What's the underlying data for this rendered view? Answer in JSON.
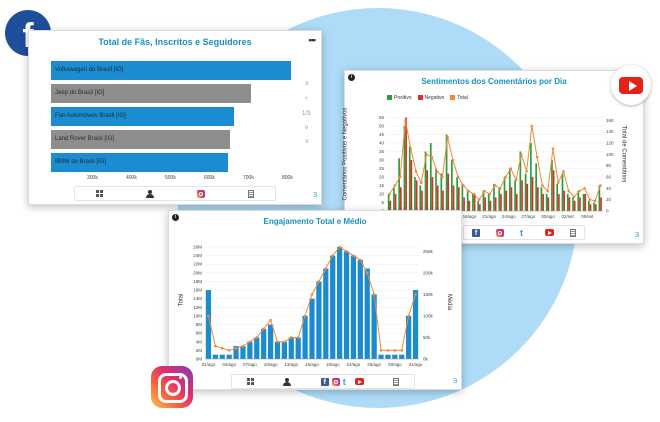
{
  "colors": {
    "accent": "#1a8fc4",
    "bar_blue": "#1b8ccf",
    "bar_gray": "#8d8d8d",
    "positive": "#27a03a",
    "negative": "#d9302c",
    "total": "#f2893a",
    "facebook": "#1f4e9a",
    "youtube": "#e62117",
    "background_circle": "#aedcf8"
  },
  "icons": {
    "facebook_logo": "facebook-icon",
    "youtube_logo": "youtube-icon",
    "instagram_logo": "instagram-icon",
    "menu": "more-dots-icon",
    "info": "info-icon",
    "table_view": "grid-icon",
    "user": "user-icon",
    "report": "document-icon"
  },
  "card1": {
    "title": "Total de Fãs, Inscritos e Seguidores",
    "menu": "•••",
    "side_controls": [
      "≡",
      "^",
      "1/3",
      "v",
      "≡"
    ],
    "corner_mark": "Ǝ",
    "chart_data": {
      "type": "bar",
      "orientation": "horizontal",
      "categories": [
        "Volkswagen do Brasil [IG]",
        "Jeep do Brasil [IG]",
        "Fiat Automóveis Brasil [IG]",
        "Land Rover Brasil [IG]",
        "BMW do Brasil [IG]"
      ],
      "values": [
        840000,
        700000,
        640000,
        625000,
        620000
      ],
      "bar_colors": [
        "#1b8ccf",
        "#8d8d8d",
        "#1b8ccf",
        "#8d8d8d",
        "#1b8ccf"
      ],
      "xlim": [
        0,
        860000
      ],
      "xticks": [
        "300k",
        "400k",
        "500k",
        "600k",
        "700k",
        "800k"
      ],
      "grid": true
    }
  },
  "card2": {
    "title": "Sentimentos dos Comentários por Dia",
    "menu": "•••",
    "corner_mark": "Ǝ",
    "chart_data": {
      "type": "bar",
      "title": "Sentimentos dos Comentários por Dia",
      "ylabel": "Comentários Positivos e Negativos",
      "y2label": "Total de Comentários",
      "legend": [
        "Positivo",
        "Negativo",
        "Total"
      ],
      "legend_position": "top",
      "ylim": [
        0,
        60
      ],
      "yticks": [
        0,
        5,
        10,
        15,
        20,
        25,
        30,
        35,
        40,
        45,
        50,
        55
      ],
      "y2lim": [
        0,
        180
      ],
      "y2ticks": [
        0,
        20,
        40,
        60,
        80,
        100,
        120,
        140,
        160
      ],
      "xticks": [
        "16/ago",
        "21/ago",
        "24/ago",
        "27/ago",
        "30/ago",
        "02/set",
        "05/set"
      ],
      "series": [
        {
          "name": "Positivo",
          "values": [
            10,
            14,
            31,
            50,
            38,
            20,
            15,
            35,
            40,
            25,
            22,
            45,
            30,
            20,
            16,
            12,
            10,
            6,
            12,
            10,
            16,
            14,
            20,
            25,
            18,
            35,
            22,
            40,
            28,
            14,
            10,
            30,
            16,
            22,
            10,
            8,
            12,
            10,
            6,
            5,
            15
          ]
        },
        {
          "name": "Negativo",
          "values": [
            6,
            10,
            14,
            55,
            30,
            18,
            12,
            24,
            20,
            15,
            12,
            22,
            15,
            14,
            8,
            6,
            10,
            4,
            8,
            6,
            8,
            10,
            12,
            14,
            10,
            18,
            16,
            20,
            14,
            10,
            8,
            24,
            10,
            12,
            8,
            6,
            8,
            10,
            4,
            4,
            8
          ]
        },
        {
          "name": "Total",
          "values": [
            30,
            45,
            60,
            160,
            110,
            70,
            50,
            100,
            95,
            70,
            60,
            130,
            90,
            60,
            45,
            35,
            30,
            20,
            35,
            30,
            45,
            40,
            60,
            75,
            55,
            100,
            70,
            150,
            95,
            45,
            35,
            110,
            50,
            70,
            35,
            25,
            35,
            40,
            20,
            18,
            45
          ]
        }
      ]
    }
  },
  "card3": {
    "title": "Engajamento Total e Médio",
    "corner_mark": "Ǝ",
    "chart_data": {
      "type": "bar",
      "title": "Engajamento Total e Médio",
      "ylabel": "Total",
      "y2label": "Média",
      "ylim": [
        0,
        26000000
      ],
      "yticks": [
        "0M",
        "2M",
        "4M",
        "6M",
        "8M",
        "10M",
        "12M",
        "14M",
        "16M",
        "18M",
        "20M",
        "22M",
        "24M",
        "26M"
      ],
      "y2lim": [
        0,
        260000
      ],
      "y2ticks": [
        "0k",
        "50k",
        "100k",
        "150k",
        "200k",
        "250k"
      ],
      "xticks": [
        "01/ago",
        "04/ago",
        "07/ago",
        "10/ago",
        "13/ago",
        "16/ago",
        "19/ago",
        "22/ago",
        "25/ago",
        "28/ago",
        "31/ago"
      ],
      "series": [
        {
          "name": "Total",
          "values": [
            16,
            1,
            1,
            1,
            3,
            3,
            4,
            5,
            7,
            8,
            4,
            4,
            5,
            5,
            10,
            14,
            18,
            21,
            24,
            26,
            25,
            24,
            23,
            21,
            15,
            1,
            1,
            1,
            1,
            10,
            16
          ]
        },
        {
          "name": "Média",
          "values": [
            100,
            30,
            25,
            20,
            25,
            30,
            40,
            50,
            70,
            90,
            40,
            40,
            50,
            50,
            100,
            150,
            180,
            210,
            240,
            260,
            250,
            240,
            230,
            200,
            150,
            20,
            20,
            20,
            20,
            100,
            150
          ]
        }
      ]
    }
  },
  "footer": {
    "card1": [
      "grid-icon",
      "user-icon",
      "instagram-icon",
      "document-icon"
    ],
    "card2": [
      "facebook-icon",
      "instagram-icon",
      "twitter-icon",
      "youtube-icon",
      "document-icon"
    ],
    "card3": [
      "grid-icon",
      "user-icon",
      "facebook-icon",
      "instagram-icon",
      "twitter-icon",
      "youtube-icon",
      "document-icon"
    ]
  },
  "logo_letters": {
    "facebook": "f",
    "twitter": "t",
    "info": "i"
  }
}
